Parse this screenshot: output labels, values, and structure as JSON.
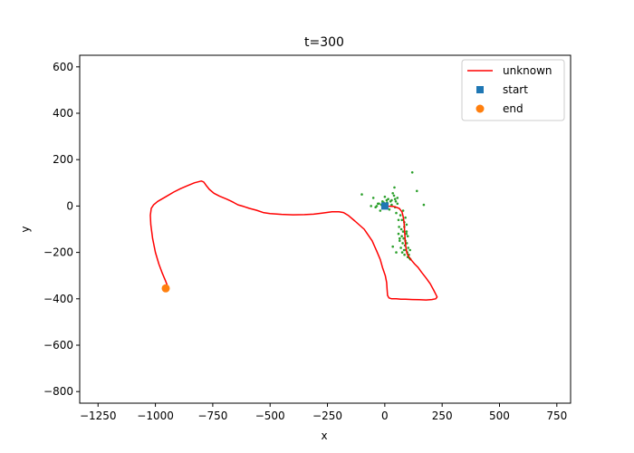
{
  "chart_data": {
    "type": "line",
    "title": "t=300",
    "xlabel": "x",
    "ylabel": "y",
    "xlim": [
      -1330,
      810
    ],
    "ylim": [
      -850,
      650
    ],
    "xticks": [
      -1250,
      -1000,
      -750,
      -500,
      -250,
      0,
      250,
      500,
      750
    ],
    "yticks": [
      -800,
      -600,
      -400,
      -200,
      0,
      200,
      400,
      600
    ],
    "xtick_labels": [
      "−1250",
      "−1000",
      "−750",
      "−500",
      "−250",
      "0",
      "250",
      "500",
      "750"
    ],
    "ytick_labels": [
      "−800",
      "−600",
      "−400",
      "−200",
      "0",
      "200",
      "400",
      "600"
    ],
    "grid": false,
    "legend_position": "top-right",
    "legend": [
      {
        "label": "unknown",
        "marker": "line",
        "color": "#ff0000"
      },
      {
        "label": "start",
        "marker": "square",
        "color": "#1f77b4"
      },
      {
        "label": "end",
        "marker": "circle",
        "color": "#ff7f0e"
      }
    ],
    "series": [
      {
        "name": "unknown",
        "kind": "line",
        "color": "#ff0000",
        "x": [
          0,
          40,
          63,
          75,
          80,
          84,
          86,
          88,
          90,
          93,
          97,
          104,
          112,
          120,
          130,
          145,
          160,
          180,
          198,
          212,
          222,
          228,
          222,
          205,
          180,
          150,
          120,
          90,
          70,
          50,
          30,
          18,
          12,
          10,
          8,
          2,
          -10,
          -20,
          -35,
          -55,
          -90,
          -130,
          -160,
          -180,
          -200,
          -230,
          -270,
          -310,
          -350,
          -400,
          -450,
          -500,
          -530,
          -560,
          -590,
          -615,
          -640,
          -658,
          -672,
          -690,
          -720,
          -745,
          -765,
          -778,
          -785,
          -790,
          -800,
          -830,
          -860,
          -890,
          -920,
          -955,
          -990,
          -1008,
          -1018,
          -1022,
          -1020,
          -1012,
          -1000,
          -985,
          -970,
          -955,
          -945
        ],
        "y": [
          0,
          -2,
          -10,
          -25,
          -45,
          -70,
          -100,
          -130,
          -160,
          -185,
          -205,
          -218,
          -228,
          -238,
          -250,
          -265,
          -285,
          -310,
          -335,
          -360,
          -380,
          -392,
          -400,
          -403,
          -405,
          -404,
          -403,
          -402,
          -402,
          -400,
          -400,
          -396,
          -385,
          -360,
          -330,
          -300,
          -265,
          -230,
          -195,
          -150,
          -100,
          -65,
          -40,
          -28,
          -25,
          -25,
          -30,
          -35,
          -37,
          -38,
          -36,
          -33,
          -28,
          -18,
          -10,
          -2,
          5,
          15,
          22,
          30,
          42,
          55,
          72,
          88,
          98,
          104,
          108,
          100,
          88,
          75,
          60,
          40,
          20,
          5,
          -10,
          -40,
          -80,
          -140,
          -200,
          -250,
          -290,
          -325,
          -350
        ]
      },
      {
        "name": "start",
        "kind": "point",
        "marker": "square",
        "color": "#1f77b4",
        "x": [
          0
        ],
        "y": [
          0
        ]
      },
      {
        "name": "end",
        "kind": "point",
        "marker": "circle",
        "color": "#ff7f0e",
        "x": [
          -955
        ],
        "y": [
          -355
        ]
      },
      {
        "kind": "scatter",
        "color": "#2ca02c",
        "x": [
          -100,
          -50,
          -40,
          -35,
          -25,
          -20,
          -15,
          -10,
          -8,
          -5,
          0,
          5,
          8,
          10,
          12,
          15,
          20,
          25,
          30,
          35,
          40,
          42,
          45,
          48,
          50,
          55,
          60,
          60,
          62,
          65,
          68,
          70,
          72,
          74,
          75,
          76,
          78,
          80,
          80,
          82,
          84,
          85,
          86,
          88,
          90,
          90,
          92,
          94,
          95,
          96,
          98,
          100,
          100,
          102,
          105,
          108,
          110,
          112,
          120,
          140,
          170,
          -60,
          -30,
          10,
          30,
          55,
          65,
          85,
          95,
          50,
          35,
          45
        ],
        "y": [
          50,
          35,
          -5,
          0,
          10,
          -20,
          5,
          20,
          -5,
          15,
          40,
          0,
          25,
          -10,
          10,
          30,
          -15,
          20,
          5,
          55,
          45,
          80,
          -5,
          20,
          -30,
          10,
          -120,
          -60,
          -90,
          -150,
          -40,
          -180,
          -100,
          -130,
          -60,
          -200,
          -160,
          -20,
          -110,
          -140,
          -190,
          -70,
          -210,
          -170,
          -50,
          -150,
          -190,
          -120,
          -80,
          -160,
          -200,
          -220,
          -130,
          -180,
          -210,
          -225,
          -190,
          -230,
          145,
          65,
          5,
          0,
          10,
          15,
          25,
          35,
          -140,
          -90,
          -110,
          -200,
          -175,
          30
        ]
      }
    ]
  }
}
